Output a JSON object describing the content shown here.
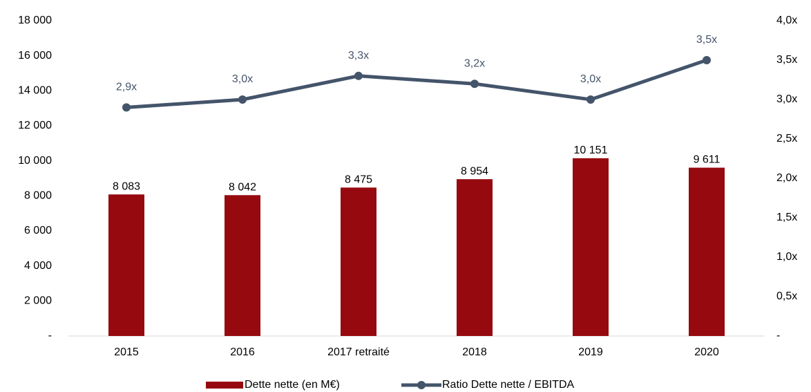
{
  "chart_data": {
    "type": "bar",
    "categories": [
      "2015",
      "2016",
      "2017 retraité",
      "2018",
      "2019",
      "2020"
    ],
    "series": [
      {
        "name": "Dette nette (en M€)",
        "type": "bar",
        "color": "#960a0f",
        "axis": "y",
        "values": [
          8083,
          8042,
          8475,
          8954,
          10151,
          9611
        ],
        "value_labels": [
          "8 083",
          "8 042",
          "8 475",
          "8 954",
          "10 151",
          "9 611"
        ]
      },
      {
        "name": "Ratio Dette nette / EBITDA",
        "type": "line",
        "color": "#44546a",
        "axis": "y2",
        "values": [
          2.9,
          3.0,
          3.3,
          3.2,
          3.0,
          3.5
        ],
        "value_labels": [
          "2,9x",
          "3,0x",
          "3,3x",
          "3,2x",
          "3,0x",
          "3,5x"
        ]
      }
    ],
    "ylim": [
      0,
      18000
    ],
    "yticks": [
      {
        "value": 0,
        "label": "-"
      },
      {
        "value": 2000,
        "label": "2 000"
      },
      {
        "value": 4000,
        "label": "4 000"
      },
      {
        "value": 6000,
        "label": "6 000"
      },
      {
        "value": 8000,
        "label": "8 000"
      },
      {
        "value": 10000,
        "label": "10 000"
      },
      {
        "value": 12000,
        "label": "12 000"
      },
      {
        "value": 14000,
        "label": "14 000"
      },
      {
        "value": 16000,
        "label": "16 000"
      },
      {
        "value": 18000,
        "label": "18 000"
      }
    ],
    "y2lim": [
      0,
      4
    ],
    "y2ticks": [
      {
        "value": 0,
        "label": "-"
      },
      {
        "value": 0.5,
        "label": "0,5x"
      },
      {
        "value": 1,
        "label": "1,0x"
      },
      {
        "value": 1.5,
        "label": "1,5x"
      },
      {
        "value": 2,
        "label": "2,0x"
      },
      {
        "value": 2.5,
        "label": "2,5x"
      },
      {
        "value": 3,
        "label": "3,0x"
      },
      {
        "value": 3.5,
        "label": "3,5x"
      },
      {
        "value": 4,
        "label": "4,0x"
      }
    ],
    "grid": false,
    "legend": "bottom"
  }
}
